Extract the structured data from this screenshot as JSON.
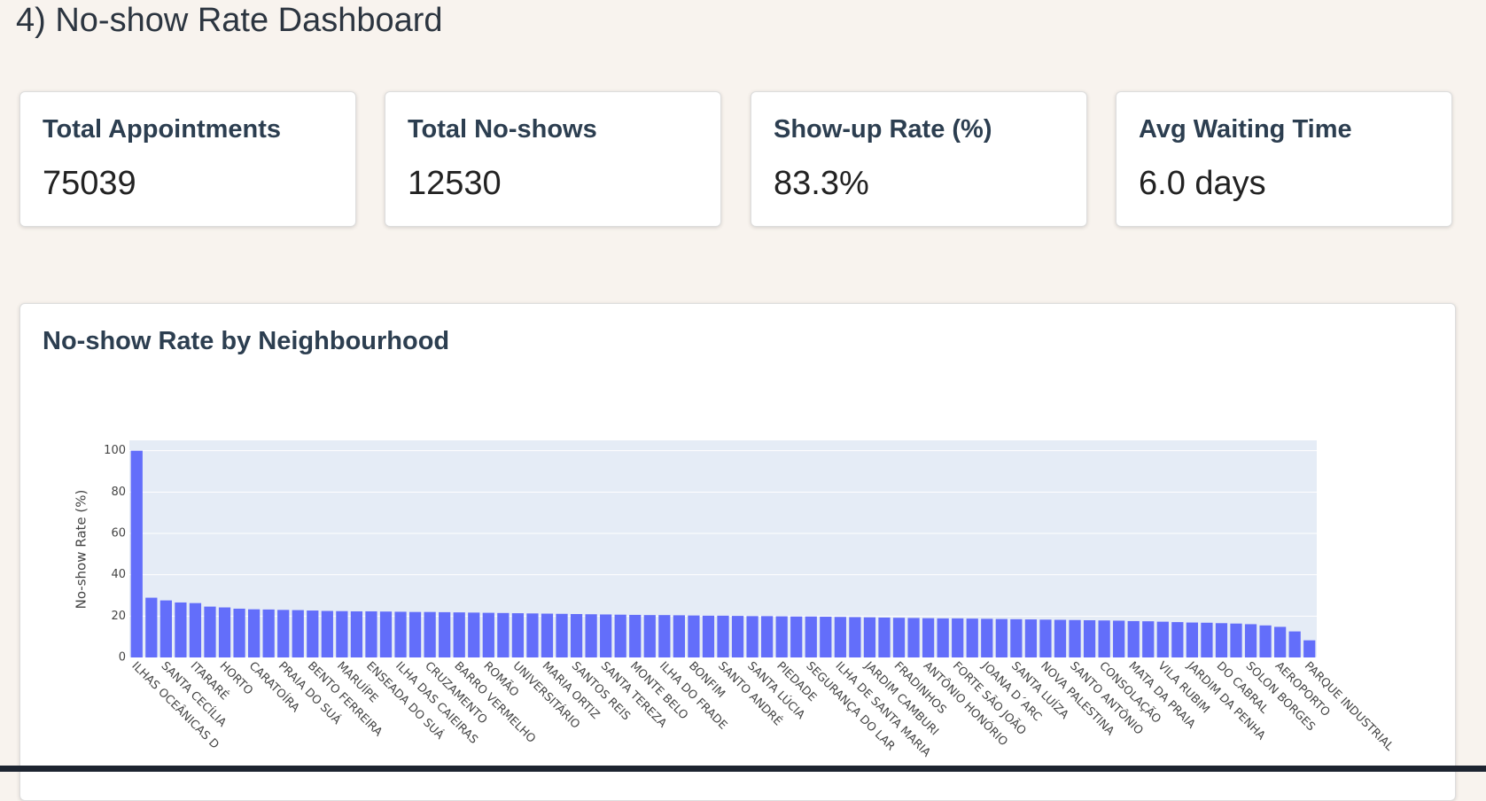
{
  "header": {
    "title": "4) No-show Rate Dashboard"
  },
  "cards": [
    {
      "label": "Total Appointments",
      "value": "75039"
    },
    {
      "label": "Total No-shows",
      "value": "12530"
    },
    {
      "label": "Show-up Rate (%)",
      "value": "83.3%"
    },
    {
      "label": "Avg Waiting Time",
      "value": "6.0 days"
    }
  ],
  "chart_data": {
    "type": "bar",
    "title": "No-show Rate by Neighbourhood",
    "y_label": "No-show Rate (%)",
    "color": "#636efa",
    "grid": true,
    "ylim": [
      0,
      105
    ],
    "yticks": [
      0,
      20,
      40,
      60,
      80,
      100
    ],
    "categories": [
      "ILHAS OCEÂNICAS D",
      null,
      "SANTA CECÍLIA",
      null,
      "ITARARÉ",
      null,
      "HORTO",
      null,
      "CARATOÍRA",
      null,
      "PRAIA DO SUÁ",
      null,
      "BENTO FERREIRA",
      null,
      "MARUÍPE",
      null,
      "ENSEADA DO SUÁ",
      null,
      "ILHA DAS CAIEIRAS",
      null,
      "CRUZAMENTO",
      null,
      "BARRO VERMELHO",
      null,
      "ROMÃO",
      null,
      "UNIVERSITÁRIO",
      null,
      "MARIA ORTIZ",
      null,
      "SANTOS REIS",
      null,
      "SANTA TEREZA",
      null,
      "MONTE BELO",
      null,
      "ILHA DO FRADE",
      null,
      "BONFIM",
      null,
      "SANTO ANDRÉ",
      null,
      "SANTA LÚCIA",
      null,
      "PIEDADE",
      null,
      "SEGURANÇA DO LAR",
      null,
      "ILHA DE SANTA MARIA",
      null,
      "JARDIM CAMBURI",
      null,
      "FRADINHOS",
      null,
      "ANTÔNIO HONÓRIO",
      null,
      "FORTE SÃO JOÃO",
      null,
      "JOANA D´ARC",
      null,
      "SANTA LUÍZA",
      null,
      "NOVA PALESTINA",
      null,
      "SANTO ANTÔNIO",
      null,
      "CONSOLAÇÃO",
      null,
      "MATA DA PRAIA",
      null,
      "VILA RUBIM",
      null,
      "JARDIM DA PENHA",
      null,
      "DO CABRAL",
      null,
      "SOLON BORGES",
      null,
      "AEROPORTO",
      null,
      "PARQUE INDUSTRIAL"
    ],
    "values": [
      100,
      28.9,
      27.6,
      26.6,
      26.3,
      24.6,
      24.2,
      23.6,
      23.3,
      23.2,
      23.0,
      22.9,
      22.7,
      22.5,
      22.4,
      22.3,
      22.3,
      22.2,
      22.1,
      22.0,
      22.0,
      21.9,
      21.8,
      21.7,
      21.6,
      21.5,
      21.4,
      21.3,
      21.2,
      21.1,
      21.0,
      20.9,
      20.8,
      20.7,
      20.6,
      20.5,
      20.5,
      20.4,
      20.3,
      20.2,
      20.2,
      20.1,
      20.0,
      20.0,
      19.9,
      19.8,
      19.8,
      19.7,
      19.6,
      19.5,
      19.4,
      19.3,
      19.2,
      19.1,
      19.0,
      18.9,
      18.9,
      18.8,
      18.7,
      18.6,
      18.5,
      18.4,
      18.3,
      18.2,
      18.1,
      18.0,
      17.9,
      17.8,
      17.6,
      17.5,
      17.3,
      17.1,
      16.9,
      16.8,
      16.6,
      16.4,
      16.1,
      15.5,
      14.8,
      12.6,
      8.3
    ]
  }
}
